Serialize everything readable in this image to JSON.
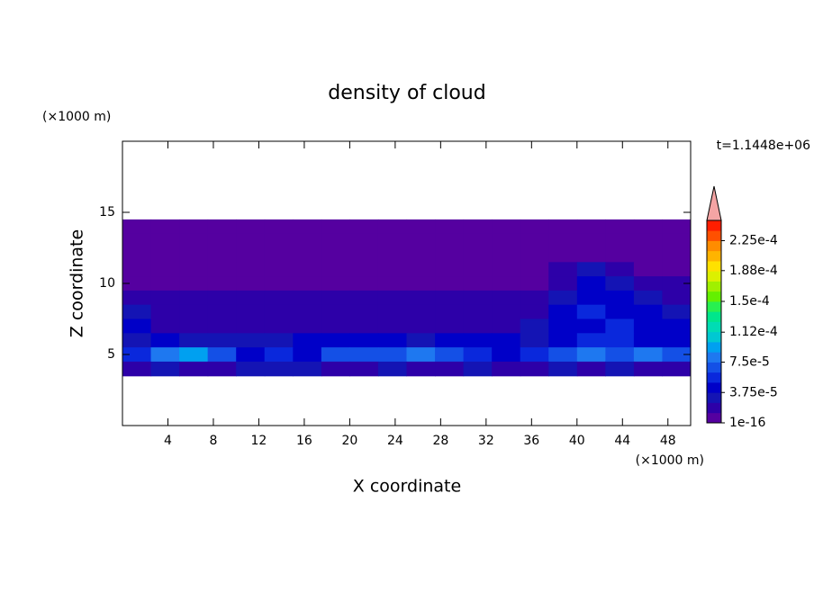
{
  "chart_data": {
    "type": "contour",
    "title": "density of cloud",
    "xlabel": "X coordinate",
    "ylabel": "Z coordinate",
    "x_unit": "(×1000 m)",
    "y_unit": "(×1000 m)",
    "annotation": "t=1.1448e+06",
    "xlim": [
      0,
      50
    ],
    "ylim": [
      0,
      20
    ],
    "xticks": [
      4,
      8,
      12,
      16,
      20,
      24,
      28,
      32,
      36,
      40,
      44,
      48
    ],
    "yticks": [
      5,
      10,
      15
    ],
    "x": [
      1.25,
      3.75,
      6.25,
      8.75,
      11.25,
      13.75,
      16.25,
      18.75,
      21.25,
      23.75,
      26.25,
      28.75,
      31.25,
      33.75,
      36.25,
      38.75,
      41.25,
      43.75,
      46.25,
      48.75
    ],
    "z": [
      14,
      13,
      12,
      11,
      10,
      9,
      8,
      7,
      6,
      5,
      4
    ],
    "values": [
      [
        5e-06,
        5e-06,
        5e-06,
        5e-06,
        5e-06,
        5e-06,
        5e-06,
        5e-06,
        5e-06,
        5e-06,
        5e-06,
        5e-06,
        5e-06,
        5e-06,
        5e-06,
        5e-06,
        5e-06,
        5e-06,
        5e-06,
        5e-06
      ],
      [
        5e-06,
        5e-06,
        5e-06,
        5e-06,
        5e-06,
        5e-06,
        5e-06,
        5e-06,
        5e-06,
        5e-06,
        5e-06,
        5e-06,
        5e-06,
        5e-06,
        5e-06,
        5e-06,
        5e-06,
        5e-06,
        5e-06,
        5e-06
      ],
      [
        5e-06,
        5e-06,
        5e-06,
        5e-06,
        5e-06,
        5e-06,
        5e-06,
        5e-06,
        5e-06,
        5e-06,
        5e-06,
        5e-06,
        5e-06,
        5e-06,
        5e-06,
        5e-06,
        5e-06,
        5e-06,
        5e-06,
        5e-06
      ],
      [
        5e-06,
        5e-06,
        5e-06,
        5e-06,
        5e-06,
        5e-06,
        5e-06,
        5e-06,
        5e-06,
        5e-06,
        5e-06,
        5e-06,
        5e-06,
        5e-06,
        5e-06,
        1.5e-05,
        3e-05,
        2e-05,
        5e-06,
        5e-06
      ],
      [
        5e-06,
        5e-06,
        5e-06,
        5e-06,
        5e-06,
        5e-06,
        5e-06,
        5e-06,
        5e-06,
        5e-06,
        5e-06,
        5e-06,
        5e-06,
        5e-06,
        5e-06,
        2.5e-05,
        4e-05,
        3.5e-05,
        2e-05,
        1.5e-05
      ],
      [
        2e-05,
        1.5e-05,
        1.5e-05,
        1.5e-05,
        1.5e-05,
        1.5e-05,
        1.5e-05,
        1.5e-05,
        1.5e-05,
        1.5e-05,
        1.5e-05,
        1.5e-05,
        1.5e-05,
        1.5e-05,
        2e-05,
        3e-05,
        5e-05,
        4e-05,
        3e-05,
        2.5e-05
      ],
      [
        3e-05,
        2e-05,
        1.5e-05,
        1.5e-05,
        1.5e-05,
        2e-05,
        1.5e-05,
        1.5e-05,
        1.5e-05,
        1.5e-05,
        2e-05,
        1.5e-05,
        2e-05,
        2e-05,
        2.5e-05,
        4e-05,
        6e-05,
        5e-05,
        4e-05,
        3e-05
      ],
      [
        4e-05,
        2e-05,
        1.5e-05,
        2e-05,
        2e-05,
        2e-05,
        2.5e-05,
        2e-05,
        2e-05,
        2.5e-05,
        2.5e-05,
        2e-05,
        2.5e-05,
        2.5e-05,
        3e-05,
        4e-05,
        5e-05,
        6e-05,
        4.5e-05,
        4e-05
      ],
      [
        3e-05,
        4e-05,
        3e-05,
        3.5e-05,
        3e-05,
        3.5e-05,
        4e-05,
        4.5e-05,
        5e-05,
        4e-05,
        3.5e-05,
        5e-05,
        4e-05,
        4.5e-05,
        3.5e-05,
        5e-05,
        6e-05,
        5.5e-05,
        5e-05,
        4.5e-05
      ],
      [
        6e-05,
        8e-05,
        9e-05,
        7e-05,
        5e-05,
        6e-05,
        5e-05,
        7e-05,
        6.5e-05,
        7.5e-05,
        8e-05,
        7e-05,
        6e-05,
        5e-05,
        6e-05,
        7e-05,
        8e-05,
        7.5e-05,
        8e-05,
        7e-05
      ],
      [
        2e-05,
        3e-05,
        2.5e-05,
        2e-05,
        3e-05,
        3.5e-05,
        3e-05,
        2.5e-05,
        2e-05,
        3e-05,
        2e-05,
        2.5e-05,
        3e-05,
        2e-05,
        2e-05,
        3e-05,
        2.5e-05,
        3e-05,
        2.5e-05,
        2e-05
      ]
    ],
    "clim": [
      1e-16,
      0.00025
    ],
    "colorbar_ticks": [
      1e-16,
      {
        "value": 3.75e-05,
        "label": "3.75e-5"
      },
      {
        "value": 7.5e-05,
        "label": "7.5e-5"
      },
      {
        "value": 0.000112,
        "label": "1.12e-4"
      },
      {
        "value": 0.00015,
        "label": "1.5e-4"
      },
      {
        "value": 0.000188,
        "label": "1.88e-4"
      },
      {
        "value": 0.000225,
        "label": "2.25e-4"
      }
    ],
    "colorbar_extend": "max",
    "extend_color": "#f4a4a4",
    "colors": [
      "#5500a0",
      "#2d00a8",
      "#1414b4",
      "#0000c8",
      "#0a28dc",
      "#1450e6",
      "#1e78f0",
      "#00a0f0",
      "#00c8d2",
      "#00dcb4",
      "#00e68c",
      "#28f050",
      "#64f000",
      "#a0f000",
      "#dcf000",
      "#ffe100",
      "#ffb400",
      "#ff8c00",
      "#ff5000",
      "#ff1e00"
    ]
  }
}
